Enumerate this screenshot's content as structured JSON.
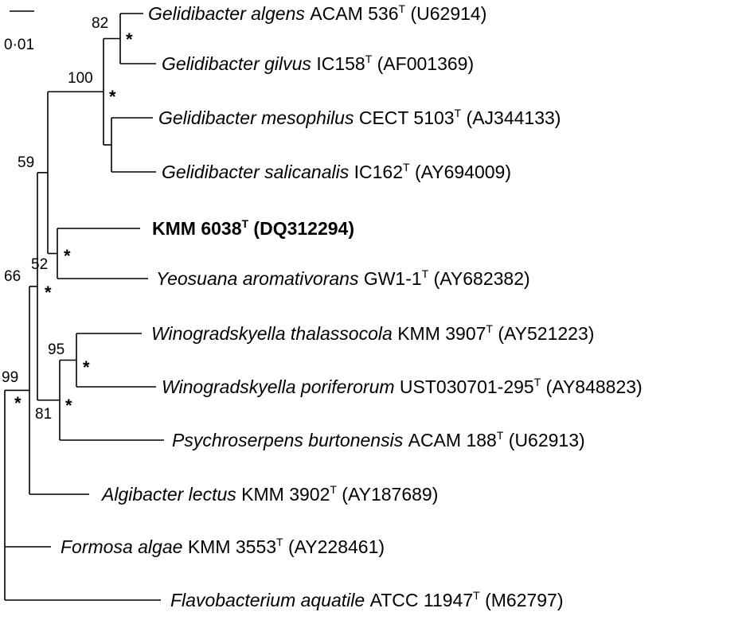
{
  "scale_bar": {
    "label": "0·01",
    "length_subs_per_site": 0.01
  },
  "taxa": [
    {
      "id": "t1",
      "genus_species": "Gelidibacter algens",
      "strain": "ACAM 536",
      "sup": "T",
      "accession": "(U62914)",
      "bold": false
    },
    {
      "id": "t2",
      "genus_species": "Gelidibacter gilvus",
      "strain": "IC158",
      "sup": "T",
      "accession": "(AF001369)",
      "bold": false
    },
    {
      "id": "t3",
      "genus_species": "Gelidibacter mesophilus",
      "strain": "CECT 5103",
      "sup": "T",
      "accession": "(AJ344133)",
      "bold": false
    },
    {
      "id": "t4",
      "genus_species": "Gelidibacter salicanalis",
      "strain": "IC162",
      "sup": "T",
      "accession": "(AY694009)",
      "bold": false
    },
    {
      "id": "t5",
      "genus_species": "",
      "strain": "KMM 6038",
      "sup": "T",
      "accession": "(DQ312294)",
      "bold": true
    },
    {
      "id": "t6",
      "genus_species": "Yeosuana aromativorans",
      "strain": "GW1-1",
      "sup": "T",
      "accession": "(AY682382)",
      "bold": false
    },
    {
      "id": "t7",
      "genus_species": "Winogradskyella thalassocola",
      "strain": "KMM 3907",
      "sup": "T",
      "accession": "(AY521223)",
      "bold": false
    },
    {
      "id": "t8",
      "genus_species": "Winogradskyella poriferorum",
      "strain": "UST030701-295",
      "sup": "T",
      "accession": "(AY848823)",
      "bold": false
    },
    {
      "id": "t9",
      "genus_species": "Psychroserpens burtonensis",
      "strain": "ACAM 188",
      "sup": "T",
      "accession": "(U62913)",
      "bold": false
    },
    {
      "id": "t10",
      "genus_species": "Algibacter lectus",
      "strain": "KMM 3902",
      "sup": "T",
      "accession": "(AY187689)",
      "bold": false
    },
    {
      "id": "t11",
      "genus_species": "Formosa algae",
      "strain": "KMM 3553",
      "sup": "T",
      "accession": "(AY228461)",
      "bold": false
    },
    {
      "id": "t12",
      "genus_species": "Flavobacterium aquatile",
      "strain": "ATCC 11947",
      "sup": "T",
      "accession": "(M62797)",
      "bold": false
    }
  ],
  "support_values": [
    {
      "node": "n_gel_ag",
      "value": "82"
    },
    {
      "node": "n_gel",
      "value": "100"
    },
    {
      "node": "n_gel_kmm",
      "value": "59"
    },
    {
      "node": "n_kmm_yeo",
      "value": "52"
    },
    {
      "node": "n_wino",
      "value": "95"
    },
    {
      "node": "n_wino_psy",
      "value": "81"
    },
    {
      "node": "n_big",
      "value": "66"
    },
    {
      "node": "n_root",
      "value": "99"
    }
  ],
  "asterisk_nodes": [
    "n_gel_ag",
    "n_gel",
    "n_kmm_yeo",
    "n_big",
    "n_wino",
    "n_wino_psy",
    "n_root"
  ],
  "asterisk_symbol": "*"
}
